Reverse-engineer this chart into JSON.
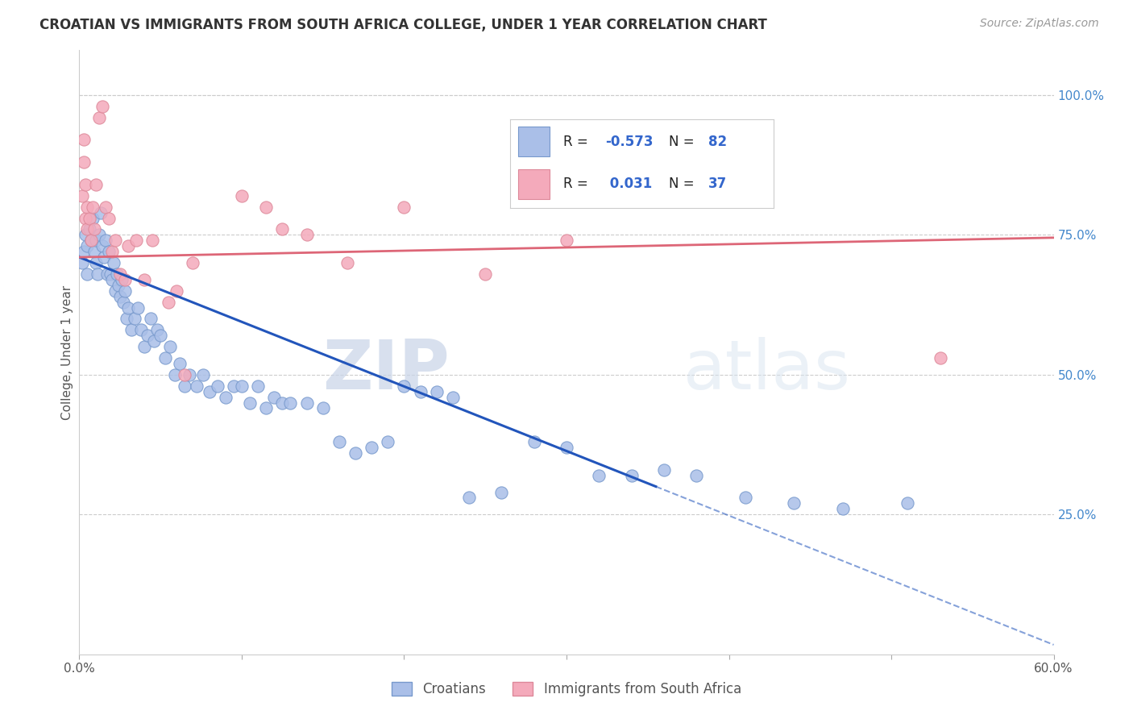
{
  "title": "CROATIAN VS IMMIGRANTS FROM SOUTH AFRICA COLLEGE, UNDER 1 YEAR CORRELATION CHART",
  "source": "Source: ZipAtlas.com",
  "ylabel": "College, Under 1 year",
  "xlim": [
    0.0,
    0.6
  ],
  "ylim": [
    0.0,
    1.08
  ],
  "xticks": [
    0.0,
    0.1,
    0.2,
    0.3,
    0.4,
    0.5,
    0.6
  ],
  "yticks_right": [
    0.25,
    0.5,
    0.75,
    1.0
  ],
  "yticklabels_right": [
    "25.0%",
    "50.0%",
    "75.0%",
    "100.0%"
  ],
  "grid_color": "#cccccc",
  "bg_color": "#ffffff",
  "blue_color": "#aabfe8",
  "pink_color": "#f4aabb",
  "blue_edge": "#7799cc",
  "pink_edge": "#dd8899",
  "trend_blue": "#2255bb",
  "trend_pink": "#dd6677",
  "legend_R_blue": "-0.573",
  "legend_N_blue": "82",
  "legend_R_pink": "0.031",
  "legend_N_pink": "37",
  "legend_color_values": "#3366cc",
  "legend_color_label": "#222222",
  "watermark_zip": "ZIP",
  "watermark_atlas": "atlas",
  "blue_x": [
    0.002,
    0.003,
    0.004,
    0.005,
    0.005,
    0.006,
    0.007,
    0.008,
    0.009,
    0.01,
    0.01,
    0.011,
    0.012,
    0.013,
    0.014,
    0.015,
    0.016,
    0.017,
    0.018,
    0.019,
    0.02,
    0.021,
    0.022,
    0.023,
    0.024,
    0.025,
    0.026,
    0.027,
    0.028,
    0.029,
    0.03,
    0.032,
    0.034,
    0.036,
    0.038,
    0.04,
    0.042,
    0.044,
    0.046,
    0.048,
    0.05,
    0.053,
    0.056,
    0.059,
    0.062,
    0.065,
    0.068,
    0.072,
    0.076,
    0.08,
    0.085,
    0.09,
    0.095,
    0.1,
    0.105,
    0.11,
    0.115,
    0.12,
    0.125,
    0.13,
    0.14,
    0.15,
    0.16,
    0.17,
    0.18,
    0.19,
    0.2,
    0.21,
    0.22,
    0.23,
    0.24,
    0.26,
    0.28,
    0.3,
    0.32,
    0.34,
    0.36,
    0.38,
    0.41,
    0.44,
    0.47,
    0.51
  ],
  "blue_y": [
    0.7,
    0.72,
    0.75,
    0.73,
    0.68,
    0.76,
    0.74,
    0.78,
    0.72,
    0.7,
    0.74,
    0.68,
    0.75,
    0.79,
    0.73,
    0.71,
    0.74,
    0.68,
    0.72,
    0.68,
    0.67,
    0.7,
    0.65,
    0.68,
    0.66,
    0.64,
    0.67,
    0.63,
    0.65,
    0.6,
    0.62,
    0.58,
    0.6,
    0.62,
    0.58,
    0.55,
    0.57,
    0.6,
    0.56,
    0.58,
    0.57,
    0.53,
    0.55,
    0.5,
    0.52,
    0.48,
    0.5,
    0.48,
    0.5,
    0.47,
    0.48,
    0.46,
    0.48,
    0.48,
    0.45,
    0.48,
    0.44,
    0.46,
    0.45,
    0.45,
    0.45,
    0.44,
    0.38,
    0.36,
    0.37,
    0.38,
    0.48,
    0.47,
    0.47,
    0.46,
    0.28,
    0.29,
    0.38,
    0.37,
    0.32,
    0.32,
    0.33,
    0.32,
    0.28,
    0.27,
    0.26,
    0.27
  ],
  "pink_x": [
    0.002,
    0.003,
    0.003,
    0.004,
    0.004,
    0.005,
    0.005,
    0.006,
    0.007,
    0.008,
    0.009,
    0.01,
    0.012,
    0.014,
    0.016,
    0.018,
    0.02,
    0.022,
    0.025,
    0.028,
    0.03,
    0.035,
    0.04,
    0.045,
    0.055,
    0.06,
    0.065,
    0.07,
    0.1,
    0.115,
    0.125,
    0.14,
    0.165,
    0.2,
    0.25,
    0.3,
    0.53
  ],
  "pink_y": [
    0.82,
    0.88,
    0.92,
    0.78,
    0.84,
    0.8,
    0.76,
    0.78,
    0.74,
    0.8,
    0.76,
    0.84,
    0.96,
    0.98,
    0.8,
    0.78,
    0.72,
    0.74,
    0.68,
    0.67,
    0.73,
    0.74,
    0.67,
    0.74,
    0.63,
    0.65,
    0.5,
    0.7,
    0.82,
    0.8,
    0.76,
    0.75,
    0.7,
    0.8,
    0.68,
    0.74,
    0.53
  ],
  "blue_trend_x0": 0.0,
  "blue_trend_y0": 0.71,
  "blue_trend_x1": 0.355,
  "blue_trend_y1": 0.3,
  "pink_trend_x0": 0.0,
  "pink_trend_y0": 0.71,
  "pink_trend_x1": 0.6,
  "pink_trend_y1": 0.745
}
